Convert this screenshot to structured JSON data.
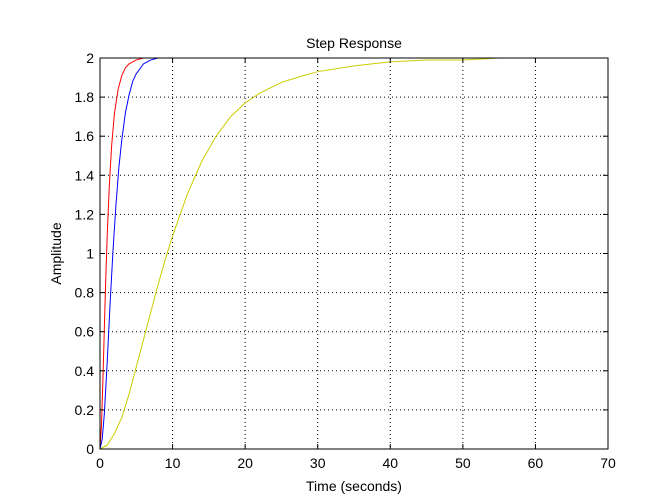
{
  "chart_data": {
    "type": "line",
    "title": "Step Response",
    "xlabel": "Time (seconds)",
    "ylabel": "Amplitude",
    "xlim": [
      0,
      70
    ],
    "ylim": [
      0,
      2
    ],
    "xticks": [
      0,
      10,
      20,
      30,
      40,
      50,
      60,
      70
    ],
    "yticks": [
      0,
      0.2,
      0.4,
      0.6,
      0.8,
      1,
      1.2,
      1.4,
      1.6,
      1.8,
      2
    ],
    "grid": true,
    "grid_style": "dotted",
    "legend": "none",
    "series": [
      {
        "color": "#ff0000",
        "x": [
          0,
          0.2,
          0.4,
          0.6,
          0.8,
          1.0,
          1.3,
          1.6,
          2.0,
          2.5,
          3.0,
          3.5,
          4.0,
          5.0,
          6.0,
          7.0,
          8.0,
          9.0,
          10.0
        ],
        "y": [
          0,
          0.12,
          0.35,
          0.62,
          0.88,
          1.1,
          1.36,
          1.55,
          1.72,
          1.84,
          1.91,
          1.95,
          1.97,
          1.99,
          2.0,
          2.0,
          2.0,
          2.0,
          2.0
        ]
      },
      {
        "color": "#0000ff",
        "x": [
          0,
          0.3,
          0.6,
          1.0,
          1.4,
          1.8,
          2.2,
          2.6,
          3.0,
          3.5,
          4.0,
          4.5,
          5.0,
          6.0,
          7.0,
          8.0,
          9.0,
          10.0
        ],
        "y": [
          0,
          0.05,
          0.18,
          0.45,
          0.75,
          1.02,
          1.25,
          1.44,
          1.58,
          1.72,
          1.81,
          1.88,
          1.92,
          1.97,
          1.99,
          2.0,
          2.0,
          2.0
        ]
      },
      {
        "color": "#cccc00",
        "x": [
          0,
          1,
          2,
          3,
          4,
          5,
          6,
          7,
          8,
          9,
          10,
          12,
          14,
          16,
          18,
          20,
          22,
          25,
          28,
          30,
          35,
          40,
          45,
          50,
          55,
          60,
          65,
          68
        ],
        "y": [
          0,
          0.02,
          0.08,
          0.16,
          0.28,
          0.42,
          0.56,
          0.7,
          0.84,
          0.97,
          1.09,
          1.3,
          1.47,
          1.6,
          1.7,
          1.77,
          1.82,
          1.875,
          1.91,
          1.93,
          1.96,
          1.98,
          1.99,
          1.99,
          2.0,
          2.0,
          2.0,
          2.0
        ]
      }
    ]
  }
}
